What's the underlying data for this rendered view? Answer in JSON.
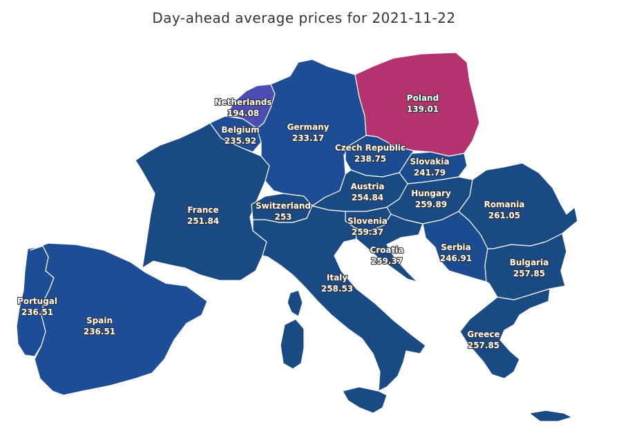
{
  "title": "Day-ahead average prices for 2021-11-22",
  "colors": {
    "low": "#b4336f",
    "mid_low": "#4b4db5",
    "high": "#1c4c8f",
    "background": "#ffffff",
    "border": "#ffffff"
  },
  "countries": [
    {
      "name": "Netherlands",
      "price": "194.08",
      "color": "#4b4db5"
    },
    {
      "name": "Belgium",
      "price": "235.92",
      "color": "#1e4d98"
    },
    {
      "name": "Germany",
      "price": "233.17",
      "color": "#1e4d98"
    },
    {
      "name": "Poland",
      "price": "139.01",
      "color": "#b4336f"
    },
    {
      "name": "Czech Republic",
      "price": "238.75",
      "color": "#1b4c8f"
    },
    {
      "name": "Slovakia",
      "price": "241.79",
      "color": "#1b4c8f"
    },
    {
      "name": "Austria",
      "price": "254.84",
      "color": "#1a4a84"
    },
    {
      "name": "Hungary",
      "price": "259.89",
      "color": "#1a4a84"
    },
    {
      "name": "Romania",
      "price": "261.05",
      "color": "#1a4a84"
    },
    {
      "name": "France",
      "price": "251.84",
      "color": "#1a4a84"
    },
    {
      "name": "Switzerland",
      "price": "253",
      "color": "#1a4a84"
    },
    {
      "name": "Slovenia",
      "price": "259.37",
      "color": "#1a4a84"
    },
    {
      "name": "Croatia",
      "price": "259.37",
      "color": "#1a4a84"
    },
    {
      "name": "Serbia",
      "price": "246.91",
      "color": "#1b4c8f"
    },
    {
      "name": "Bulgaria",
      "price": "257.85",
      "color": "#1a4a84"
    },
    {
      "name": "Italy",
      "price": "258.53",
      "color": "#1a4a84"
    },
    {
      "name": "Greece",
      "price": "257.85",
      "color": "#1a4a84"
    },
    {
      "name": "Portugal",
      "price": "236.51",
      "color": "#1e4d98"
    },
    {
      "name": "Spain",
      "price": "236.51",
      "color": "#1e4d98"
    }
  ]
}
